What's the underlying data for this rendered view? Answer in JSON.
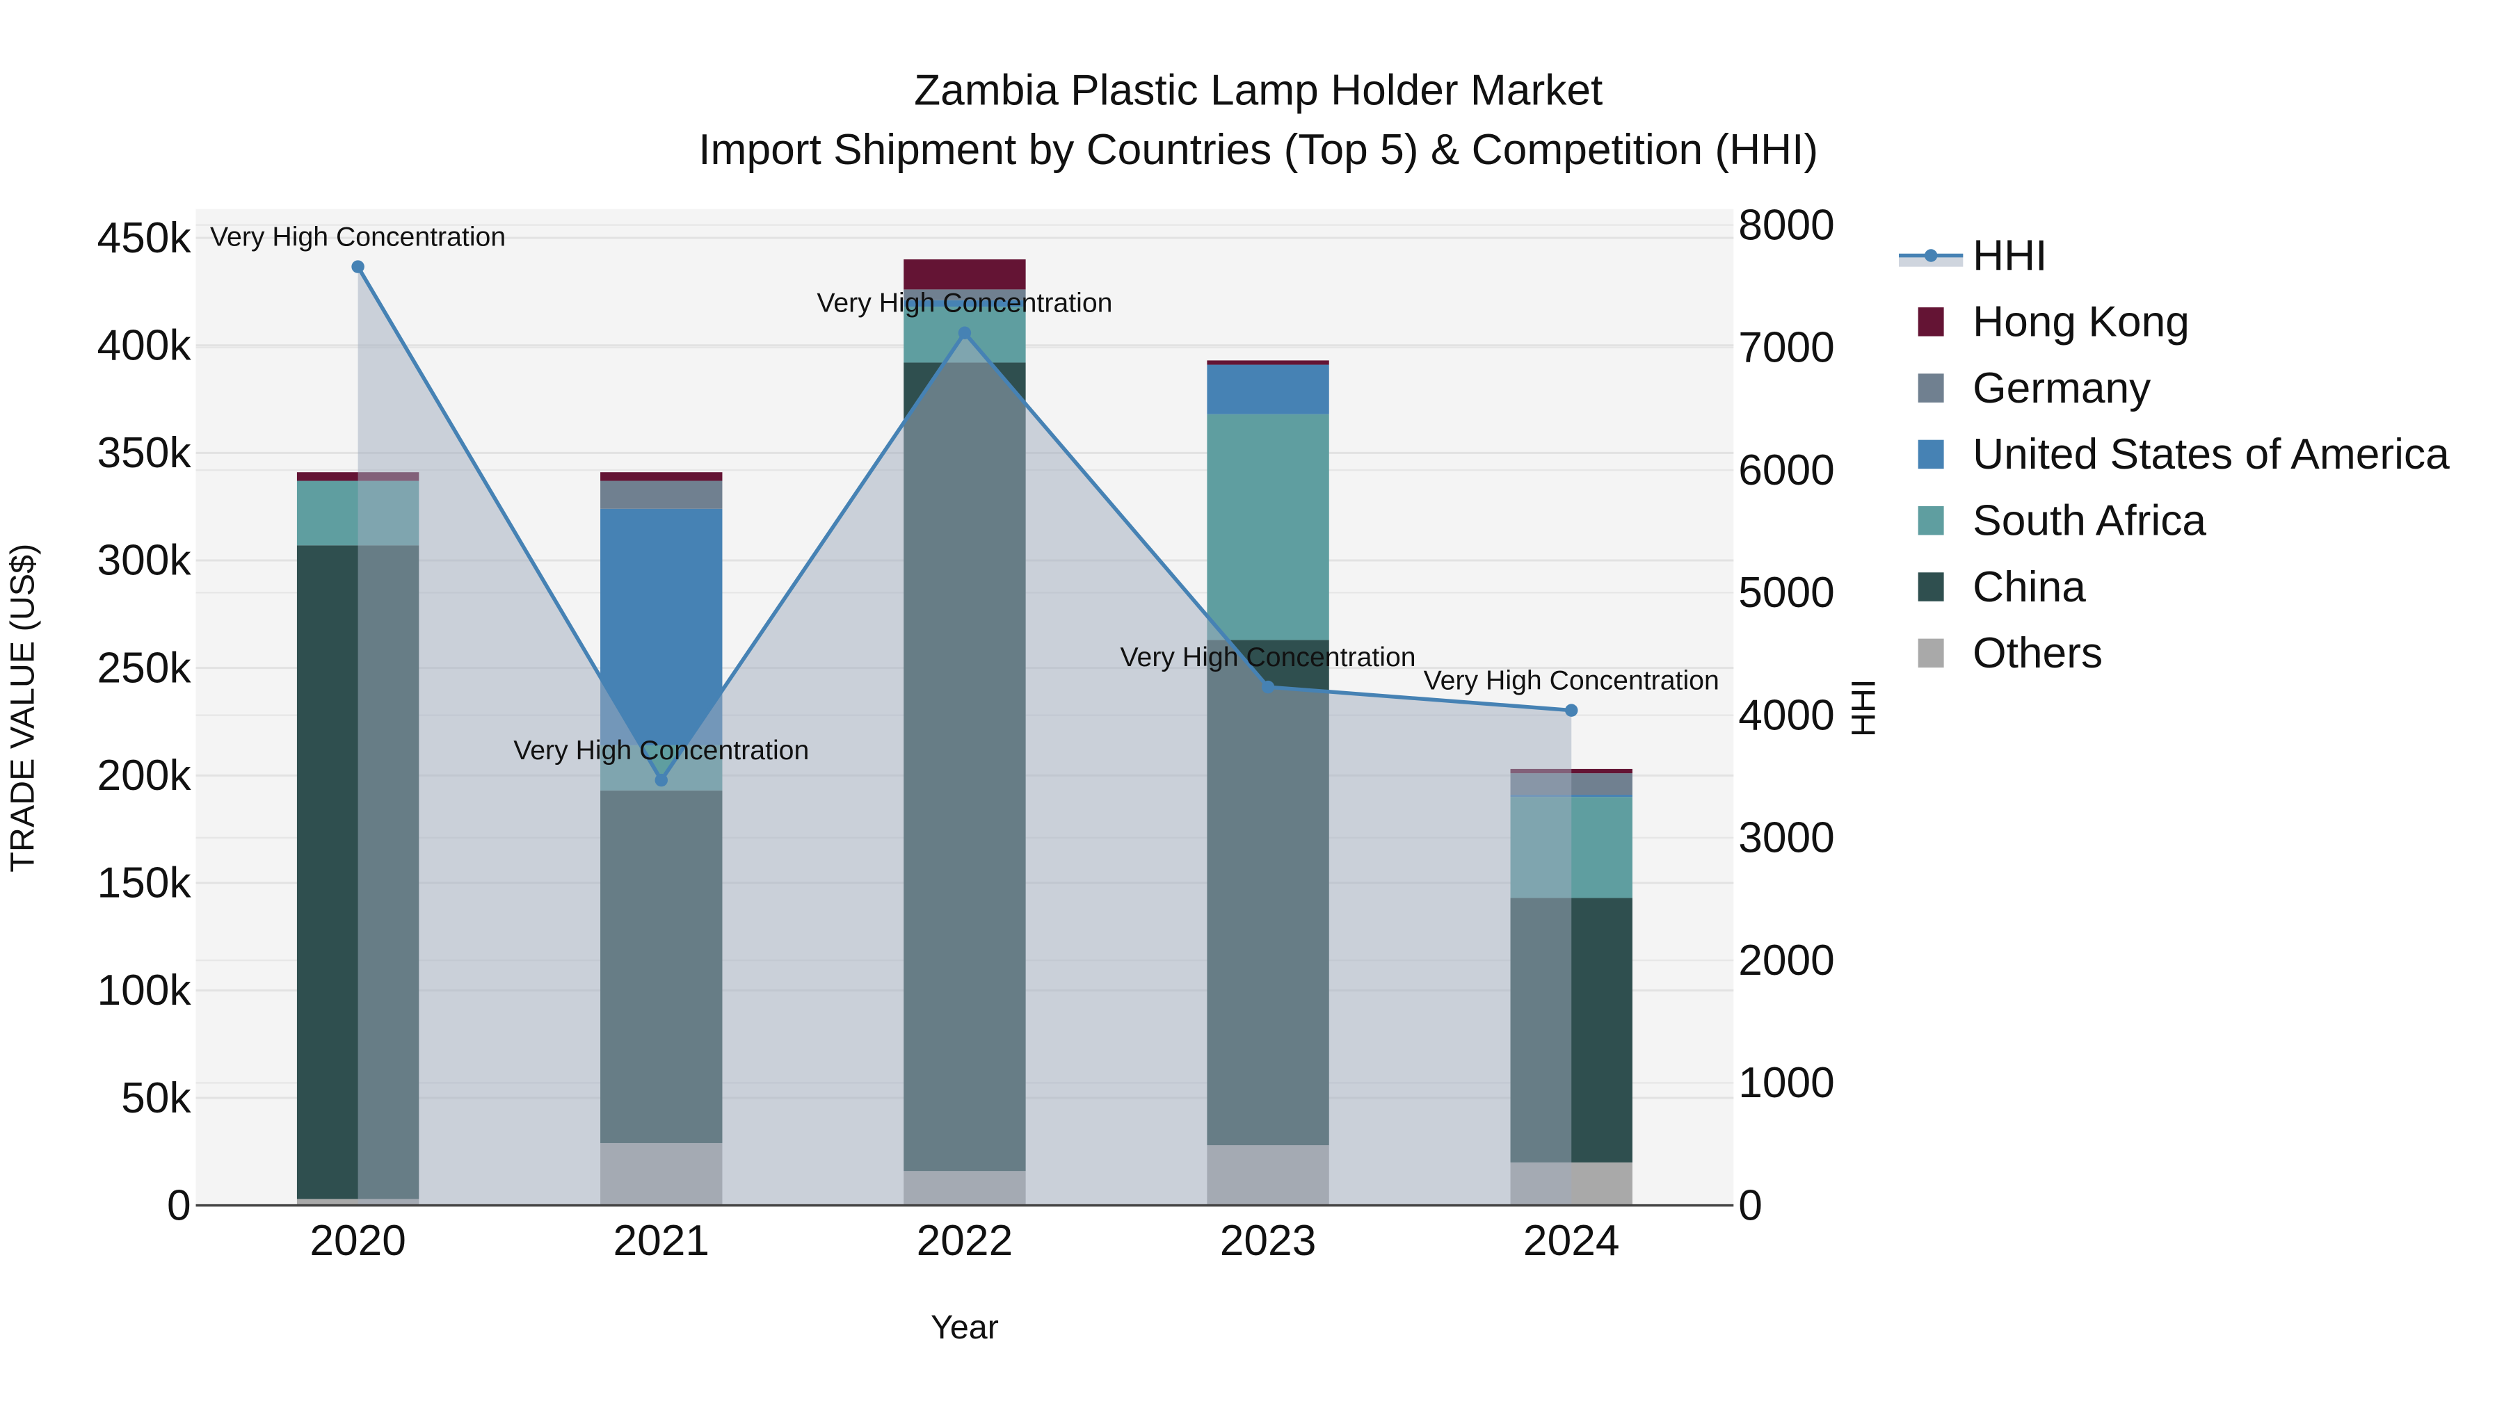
{
  "title": {
    "line1": "Zambia Plastic Lamp Holder Market",
    "line2": "Import Shipment by Countries (Top 5) & Competition (HHI)"
  },
  "axes": {
    "x_title": "Year",
    "y_left_title": "TRADE VALUE (US$)",
    "y_right_title": "HHI",
    "x_ticks": [
      "2020",
      "2021",
      "2022",
      "2023",
      "2024"
    ],
    "y_left_ticks": [
      "0",
      "50k",
      "100k",
      "150k",
      "200k",
      "250k",
      "300k",
      "350k",
      "400k",
      "450k"
    ],
    "y_right_ticks": [
      "0",
      "1000",
      "2000",
      "3000",
      "4000",
      "5000",
      "6000",
      "7000",
      "8000"
    ]
  },
  "legend": {
    "items": [
      {
        "label": "HHI",
        "color": "#4682b4",
        "kind": "line"
      },
      {
        "label": "Hong Kong",
        "color": "#641434",
        "kind": "box"
      },
      {
        "label": "Germany",
        "color": "#708090",
        "kind": "box"
      },
      {
        "label": "United States of America",
        "color": "#4682b4",
        "kind": "box"
      },
      {
        "label": "South Africa",
        "color": "#5f9ea0",
        "kind": "box"
      },
      {
        "label": "China",
        "color": "#2f4f4f",
        "kind": "box"
      },
      {
        "label": "Others",
        "color": "#a9a9a9",
        "kind": "box"
      }
    ]
  },
  "annotations": [
    {
      "year": "2020",
      "text": "Very High Concentration"
    },
    {
      "year": "2021",
      "text": "Very High Concentration"
    },
    {
      "year": "2022",
      "text": "Very High Concentration"
    },
    {
      "year": "2023",
      "text": "Very High Concentration"
    },
    {
      "year": "2024",
      "text": "Very High Concentration"
    }
  ],
  "chart_data": {
    "type": "bar",
    "subtype": "stacked bar + line (secondary axis)",
    "title": "Zambia Plastic Lamp Holder Market — Import Shipment by Countries (Top 5) & Competition (HHI)",
    "xlabel": "Year",
    "ylabel": "TRADE VALUE (US$)",
    "y2label": "HHI",
    "categories": [
      "2020",
      "2021",
      "2022",
      "2023",
      "2024"
    ],
    "ylim": [
      0,
      450000
    ],
    "y2lim": [
      0,
      8000
    ],
    "grid": true,
    "legend_position": "right",
    "series": [
      {
        "name": "Others",
        "type": "bar",
        "color": "#a9a9a9",
        "values": [
          3000,
          29000,
          16000,
          28000,
          20000
        ]
      },
      {
        "name": "China",
        "type": "bar",
        "color": "#2f4f4f",
        "values": [
          304000,
          164000,
          376000,
          235000,
          123000
        ]
      },
      {
        "name": "South Africa",
        "type": "bar",
        "color": "#5f9ea0",
        "values": [
          30000,
          21000,
          26000,
          105000,
          47000
        ]
      },
      {
        "name": "United States of America",
        "type": "bar",
        "color": "#4682b4",
        "values": [
          0,
          110000,
          3000,
          23000,
          1000
        ]
      },
      {
        "name": "Germany",
        "type": "bar",
        "color": "#708090",
        "values": [
          0,
          13000,
          5000,
          0,
          10000
        ]
      },
      {
        "name": "Hong Kong",
        "type": "bar",
        "color": "#641434",
        "values": [
          4000,
          4000,
          14000,
          2000,
          2000
        ]
      },
      {
        "name": "HHI",
        "type": "line",
        "axis": "y2",
        "color": "#4682b4",
        "values": [
          7660,
          3470,
          7120,
          4230,
          4040
        ]
      }
    ],
    "annotations": [
      "Very High Concentration",
      "Very High Concentration",
      "Very High Concentration",
      "Very High Concentration",
      "Very High Concentration"
    ]
  }
}
